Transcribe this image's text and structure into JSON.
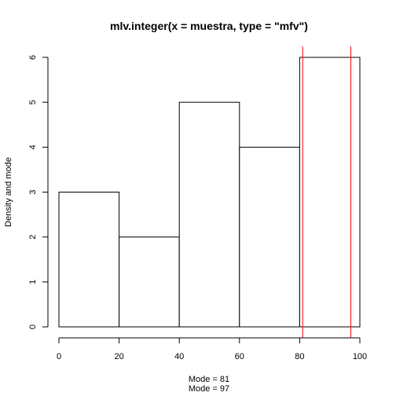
{
  "chart_data": {
    "type": "bar",
    "title": "mlv.integer(x = muestra, type = \"mfv\")",
    "xlabel": "",
    "ylabel": "Density and mode",
    "bins": [
      {
        "from": 0,
        "to": 20,
        "value": 3
      },
      {
        "from": 20,
        "to": 40,
        "value": 2
      },
      {
        "from": 40,
        "to": 60,
        "value": 5
      },
      {
        "from": 60,
        "to": 80,
        "value": 4
      },
      {
        "from": 80,
        "to": 100,
        "value": 6
      }
    ],
    "xlim": [
      0,
      100
    ],
    "ylim": [
      0,
      6
    ],
    "xticks": [
      "0",
      "20",
      "40",
      "60",
      "80",
      "100"
    ],
    "yticks": [
      "0",
      "1",
      "2",
      "3",
      "4",
      "5",
      "6"
    ],
    "mode_lines": [
      81,
      97
    ],
    "mode_line_color": "#ff0000",
    "bar_fill": "#ffffff",
    "bar_stroke": "#000000",
    "grid": false,
    "legend": "none",
    "notes": [
      "Mode = 81",
      "Mode = 97"
    ]
  }
}
